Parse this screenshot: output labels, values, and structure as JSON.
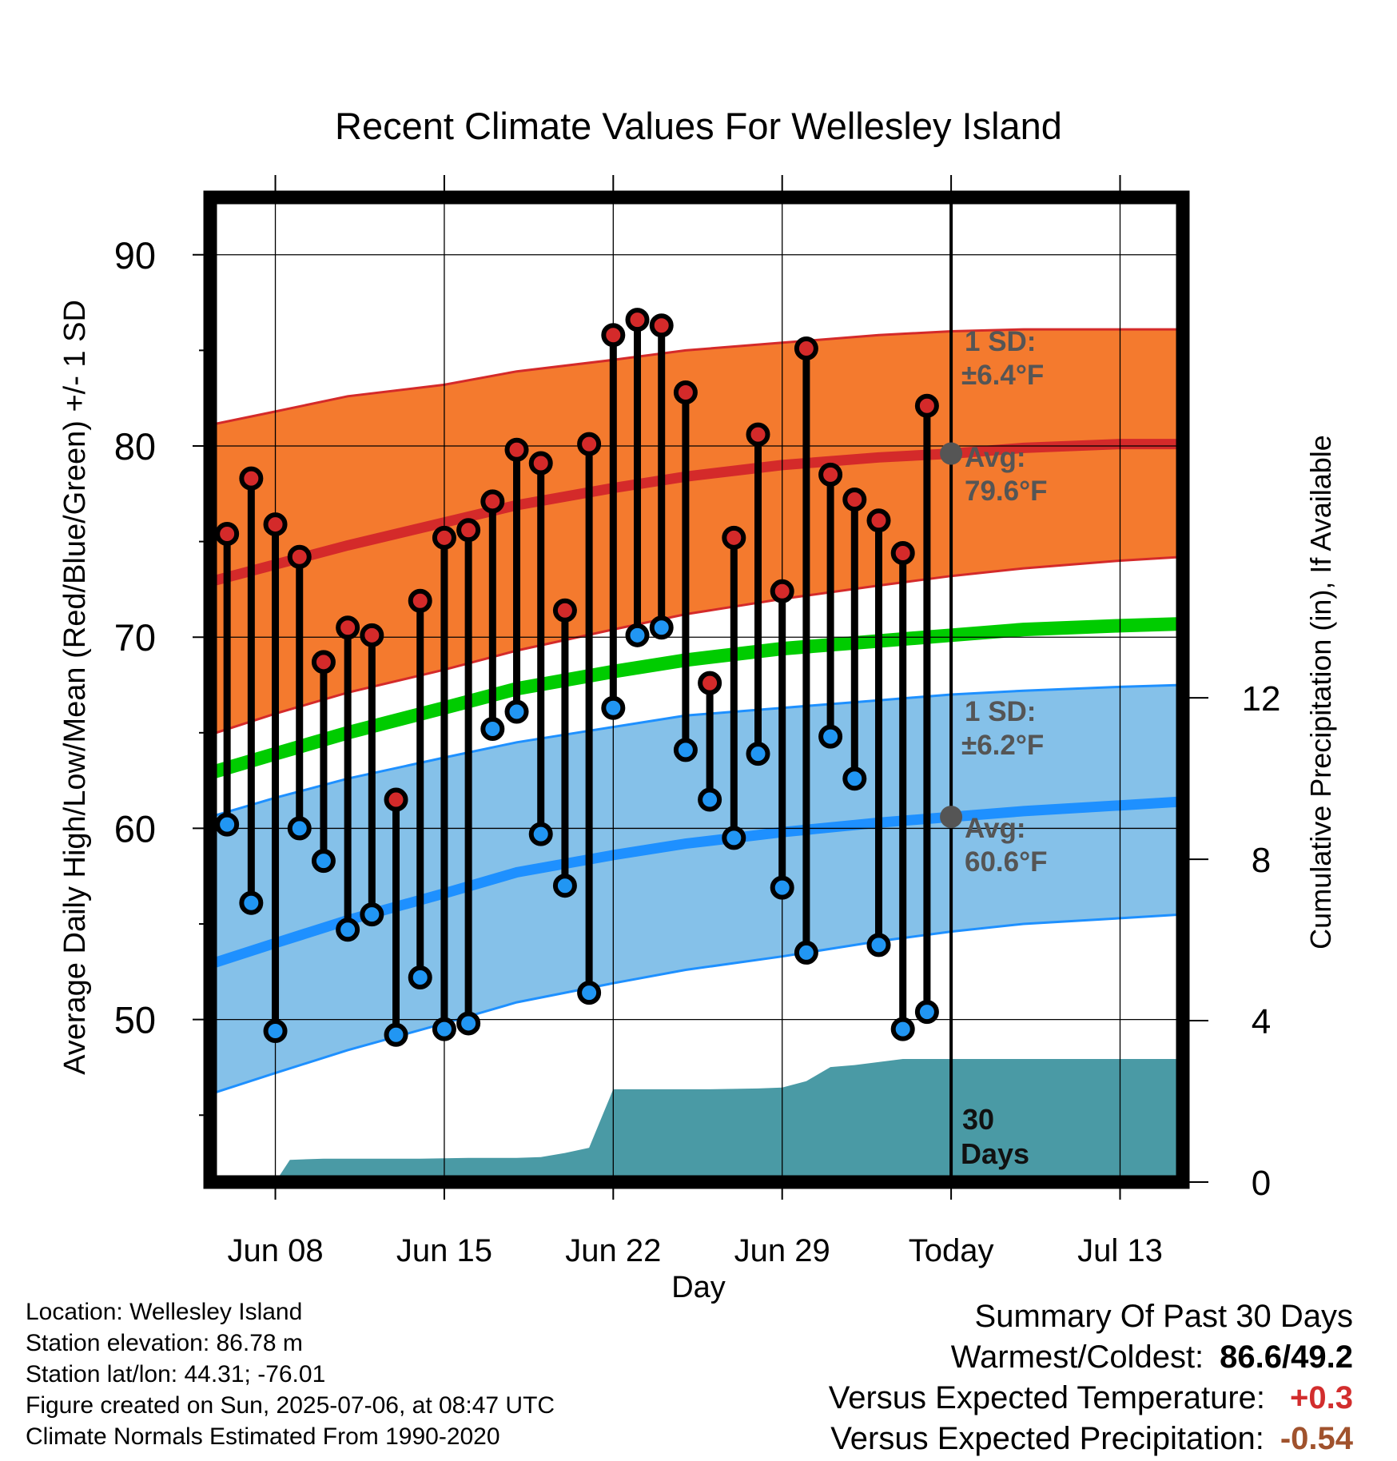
{
  "title": "Recent Climate Values For Wellesley Island",
  "ylabel_left": "Average Daily High/Low/Mean (Red/Blue/Green) +/- 1 SD",
  "ylabel_right": "Cumulative Precipitation (in), If Available",
  "xlabel": "Day",
  "annotations": {
    "high_sd_label": "1 SD:",
    "high_sd_value": "±6.4°F",
    "high_avg_label": "Avg:",
    "high_avg_value": "79.6°F",
    "low_sd_label": "1 SD:",
    "low_sd_value": "±6.2°F",
    "low_avg_label": "Avg:",
    "low_avg_value": "60.6°F",
    "period_line1": "30",
    "period_line2": "Days"
  },
  "info": {
    "location": "Location: Wellesley Island",
    "elevation": "Station elevation: 86.78 m",
    "latlon": "Station lat/lon: 44.31; -76.01",
    "created": "Figure created on Sun, 2025-07-06, at 08:47 UTC",
    "normals": "Climate Normals Estimated From 1990-2020"
  },
  "summary": {
    "heading": "Summary Of Past 30 Days",
    "warm_cold_label": "Warmest/Coldest:",
    "warm_cold_value": "86.6/49.2",
    "temp_label": "Versus Expected Temperature:",
    "temp_value": "+0.3",
    "temp_color": "#d22d2d",
    "precip_label": "Versus Expected Precipitation:",
    "precip_value": "-0.54",
    "precip_color": "#a0522d"
  },
  "colors": {
    "high_band": "#f47a2e",
    "high_line": "#d42a2a",
    "low_band": "#85c1e9",
    "low_line": "#1e90ff",
    "mean_line": "#00cc00",
    "precip": "#4a9aa5",
    "high_dot": "#d42a2a",
    "low_dot": "#2196f3",
    "avg_dot": "#555555"
  },
  "chart_data": {
    "type": "line",
    "xlim": [
      -2.7,
      37.6
    ],
    "ylim_left": [
      41.5,
      93
    ],
    "ylim_right": [
      0,
      24.4
    ],
    "x_ticks": [
      {
        "x": 0,
        "label": "Jun 08"
      },
      {
        "x": 7,
        "label": "Jun 15"
      },
      {
        "x": 14,
        "label": "Jun 22"
      },
      {
        "x": 21,
        "label": "Jun 29"
      },
      {
        "x": 28,
        "label": "Today"
      },
      {
        "x": 35,
        "label": "Jul 13"
      }
    ],
    "y_ticks_left": [
      50,
      60,
      70,
      80,
      90
    ],
    "y_ticks_right": [
      0,
      4,
      8,
      12
    ],
    "today_x": 28,
    "observed": {
      "day": [
        -2,
        -1,
        0,
        1,
        2,
        3,
        4,
        5,
        6,
        7,
        8,
        9,
        10,
        11,
        12,
        13,
        14,
        15,
        16,
        17,
        18,
        19,
        20,
        21,
        22,
        23,
        24,
        25,
        26,
        27
      ],
      "high": [
        75.4,
        78.3,
        75.9,
        74.2,
        68.7,
        70.5,
        70.1,
        61.5,
        71.9,
        75.2,
        75.6,
        77.1,
        79.8,
        79.1,
        71.4,
        80.1,
        85.8,
        86.6,
        86.3,
        82.8,
        67.6,
        75.2,
        80.6,
        72.4,
        85.1,
        78.5,
        77.2,
        76.1,
        74.4,
        82.1
      ],
      "low": [
        60.2,
        56.1,
        49.4,
        60.0,
        58.3,
        54.7,
        55.5,
        49.2,
        52.2,
        49.5,
        49.8,
        65.2,
        66.1,
        59.7,
        57.0,
        51.4,
        66.3,
        70.1,
        70.5,
        64.1,
        61.5,
        59.5,
        63.9,
        56.9,
        53.5,
        64.8,
        62.6,
        53.9,
        49.5,
        50.4
      ]
    },
    "normals": {
      "day": [
        -2.7,
        0,
        3,
        7,
        10,
        14,
        17,
        21,
        25,
        28,
        31,
        35,
        37.6
      ],
      "high_mean": [
        72.9,
        73.8,
        74.8,
        76.0,
        76.9,
        77.8,
        78.4,
        79.0,
        79.4,
        79.6,
        79.9,
        80.1,
        80.1
      ],
      "high_upper": [
        81.1,
        81.8,
        82.6,
        83.2,
        83.9,
        84.5,
        85.0,
        85.4,
        85.8,
        86.0,
        86.1,
        86.1,
        86.1
      ],
      "high_lower": [
        64.9,
        66.0,
        67.1,
        68.3,
        69.3,
        70.4,
        71.2,
        72.0,
        72.7,
        73.2,
        73.6,
        74.0,
        74.2
      ],
      "mean": [
        62.9,
        63.9,
        65.0,
        66.3,
        67.3,
        68.2,
        68.8,
        69.4,
        69.8,
        70.1,
        70.4,
        70.6,
        70.7
      ],
      "low_mean": [
        52.9,
        54.0,
        55.2,
        56.6,
        57.7,
        58.6,
        59.2,
        59.8,
        60.3,
        60.6,
        60.9,
        61.2,
        61.4
      ],
      "low_upper": [
        60.6,
        61.6,
        62.6,
        63.7,
        64.5,
        65.3,
        65.9,
        66.3,
        66.7,
        67.0,
        67.2,
        67.4,
        67.5
      ],
      "low_lower": [
        46.1,
        47.2,
        48.4,
        49.8,
        50.9,
        51.9,
        52.6,
        53.3,
        54.1,
        54.6,
        55.0,
        55.3,
        55.5
      ]
    },
    "precip": {
      "day": [
        0,
        0.6,
        2,
        4,
        6,
        8,
        10,
        11,
        12,
        13,
        14,
        16,
        18,
        20,
        21,
        22,
        23,
        24,
        26,
        27,
        28,
        30,
        32,
        34,
        36,
        37.6
      ],
      "cumulative": [
        0,
        0.55,
        0.58,
        0.58,
        0.58,
        0.6,
        0.6,
        0.62,
        0.72,
        0.85,
        2.3,
        2.3,
        2.3,
        2.32,
        2.34,
        2.5,
        2.85,
        2.9,
        3.05,
        3.05,
        3.05,
        3.05,
        3.05,
        3.05,
        3.05,
        3.05
      ]
    }
  }
}
